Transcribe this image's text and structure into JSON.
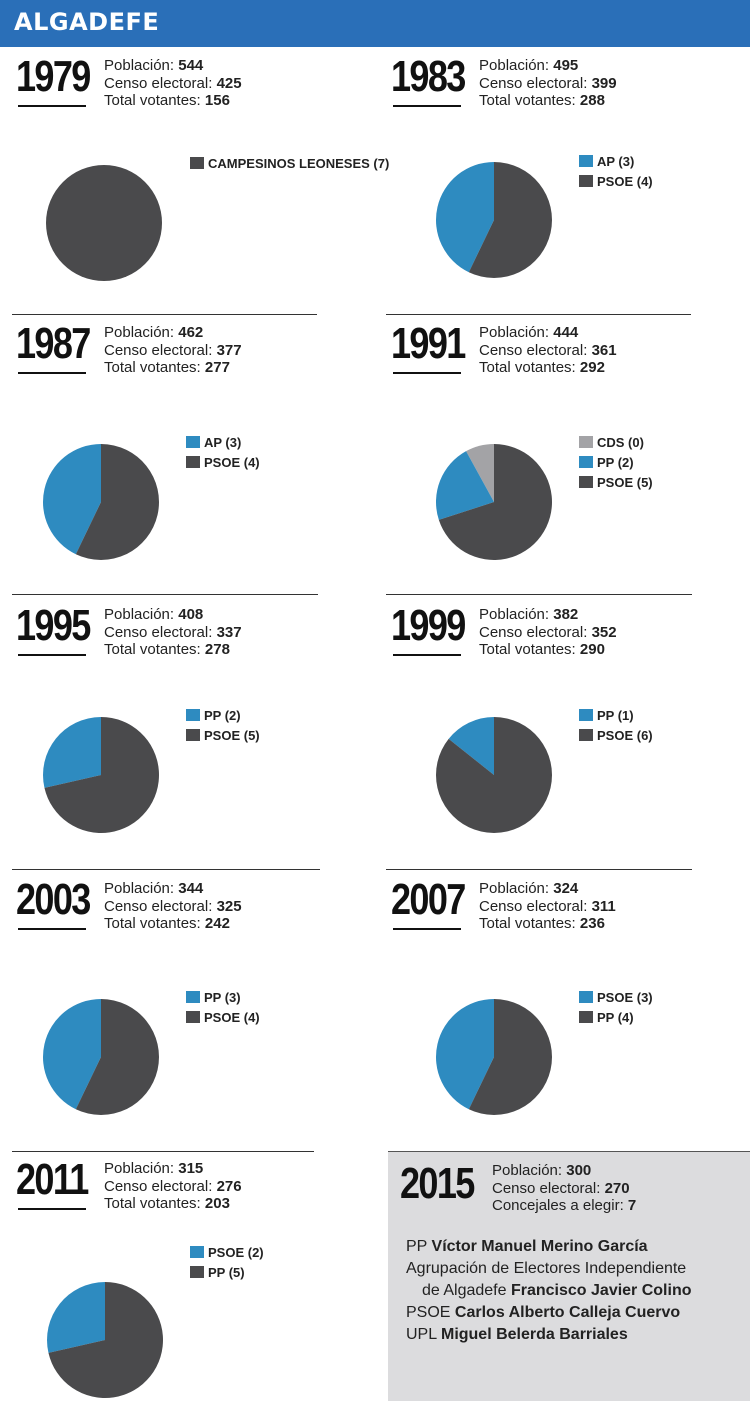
{
  "header": {
    "title": "ALGADEFE"
  },
  "labels": {
    "poblacion": "Población:",
    "censo": "Censo electoral:",
    "votantes": "Total votantes:",
    "concejales": "Concejales a elegir:"
  },
  "colors": {
    "PSOE": "#4a4a4c",
    "AP": "#2e8bc0",
    "PP": "#2e8bc0",
    "CDS": "#a3a3a6",
    "CAMPESINOS LEONESES": "#4a4a4c"
  },
  "chart_data": [
    {
      "type": "pie",
      "year": "1979",
      "poblacion": "544",
      "censo": "425",
      "votantes": "156",
      "slices": [
        {
          "label": "CAMPESINOS LEONESES (7)",
          "party": "CAMPESINOS LEONESES",
          "value": 7,
          "color": "#4a4a4c"
        }
      ]
    },
    {
      "type": "pie",
      "year": "1983",
      "poblacion": "495",
      "censo": "399",
      "votantes": "288",
      "slices": [
        {
          "label": "AP (3)",
          "party": "AP",
          "value": 3,
          "color": "#2e8bc0"
        },
        {
          "label": "PSOE (4)",
          "party": "PSOE",
          "value": 4,
          "color": "#4a4a4c"
        }
      ]
    },
    {
      "type": "pie",
      "year": "1987",
      "poblacion": "462",
      "censo": "377",
      "votantes": "277",
      "slices": [
        {
          "label": "AP (3)",
          "party": "AP",
          "value": 3,
          "color": "#2e8bc0"
        },
        {
          "label": "PSOE (4)",
          "party": "PSOE",
          "value": 4,
          "color": "#4a4a4c"
        }
      ]
    },
    {
      "type": "pie",
      "year": "1991",
      "poblacion": "444",
      "censo": "361",
      "votantes": "292",
      "slices": [
        {
          "label": "CDS (0)",
          "party": "CDS",
          "value": 0,
          "color": "#a3a3a6",
          "share": 0.08
        },
        {
          "label": "PP (2)",
          "party": "PP",
          "value": 2,
          "color": "#2e8bc0",
          "share": 0.22
        },
        {
          "label": "PSOE (5)",
          "party": "PSOE",
          "value": 5,
          "color": "#4a4a4c",
          "share": 0.7
        }
      ]
    },
    {
      "type": "pie",
      "year": "1995",
      "poblacion": "408",
      "censo": "337",
      "votantes": "278",
      "slices": [
        {
          "label": "PP (2)",
          "party": "PP",
          "value": 2,
          "color": "#2e8bc0"
        },
        {
          "label": "PSOE (5)",
          "party": "PSOE",
          "value": 5,
          "color": "#4a4a4c"
        }
      ]
    },
    {
      "type": "pie",
      "year": "1999",
      "poblacion": "382",
      "censo": "352",
      "votantes": "290",
      "slices": [
        {
          "label": "PP (1)",
          "party": "PP",
          "value": 1,
          "color": "#2e8bc0"
        },
        {
          "label": "PSOE (6)",
          "party": "PSOE",
          "value": 6,
          "color": "#4a4a4c"
        }
      ]
    },
    {
      "type": "pie",
      "year": "2003",
      "poblacion": "344",
      "censo": "325",
      "votantes": "242",
      "slices": [
        {
          "label": "PP (3)",
          "party": "PP",
          "value": 3,
          "color": "#2e8bc0"
        },
        {
          "label": "PSOE (4)",
          "party": "PSOE",
          "value": 4,
          "color": "#4a4a4c"
        }
      ]
    },
    {
      "type": "pie",
      "year": "2007",
      "poblacion": "324",
      "censo": "311",
      "votantes": "236",
      "slices": [
        {
          "label": "PSOE (3)",
          "party": "PSOE",
          "value": 3,
          "color": "#2e8bc0"
        },
        {
          "label": "PP (4)",
          "party": "PP",
          "value": 4,
          "color": "#4a4a4c"
        }
      ]
    },
    {
      "type": "pie",
      "year": "2011",
      "poblacion": "315",
      "censo": "276",
      "votantes": "203",
      "slices": [
        {
          "label": "PSOE (2)",
          "party": "PSOE",
          "value": 2,
          "color": "#2e8bc0"
        },
        {
          "label": "PP (5)",
          "party": "PP",
          "value": 5,
          "color": "#4a4a4c"
        }
      ]
    }
  ],
  "election_2015": {
    "year": "2015",
    "poblacion": "300",
    "censo": "270",
    "concejales": "7",
    "candidates": [
      {
        "party": "PP",
        "name": "Víctor Manuel Merino García"
      },
      {
        "party": "Agrupación de Electores Independiente",
        "party_line2": "de Algadefe",
        "name": "Francisco Javier Colino"
      },
      {
        "party": "PSOE",
        "name": "Carlos Alberto Calleja Cuervo"
      },
      {
        "party": "UPL",
        "name": "Miguel Belerda Barriales"
      }
    ]
  }
}
